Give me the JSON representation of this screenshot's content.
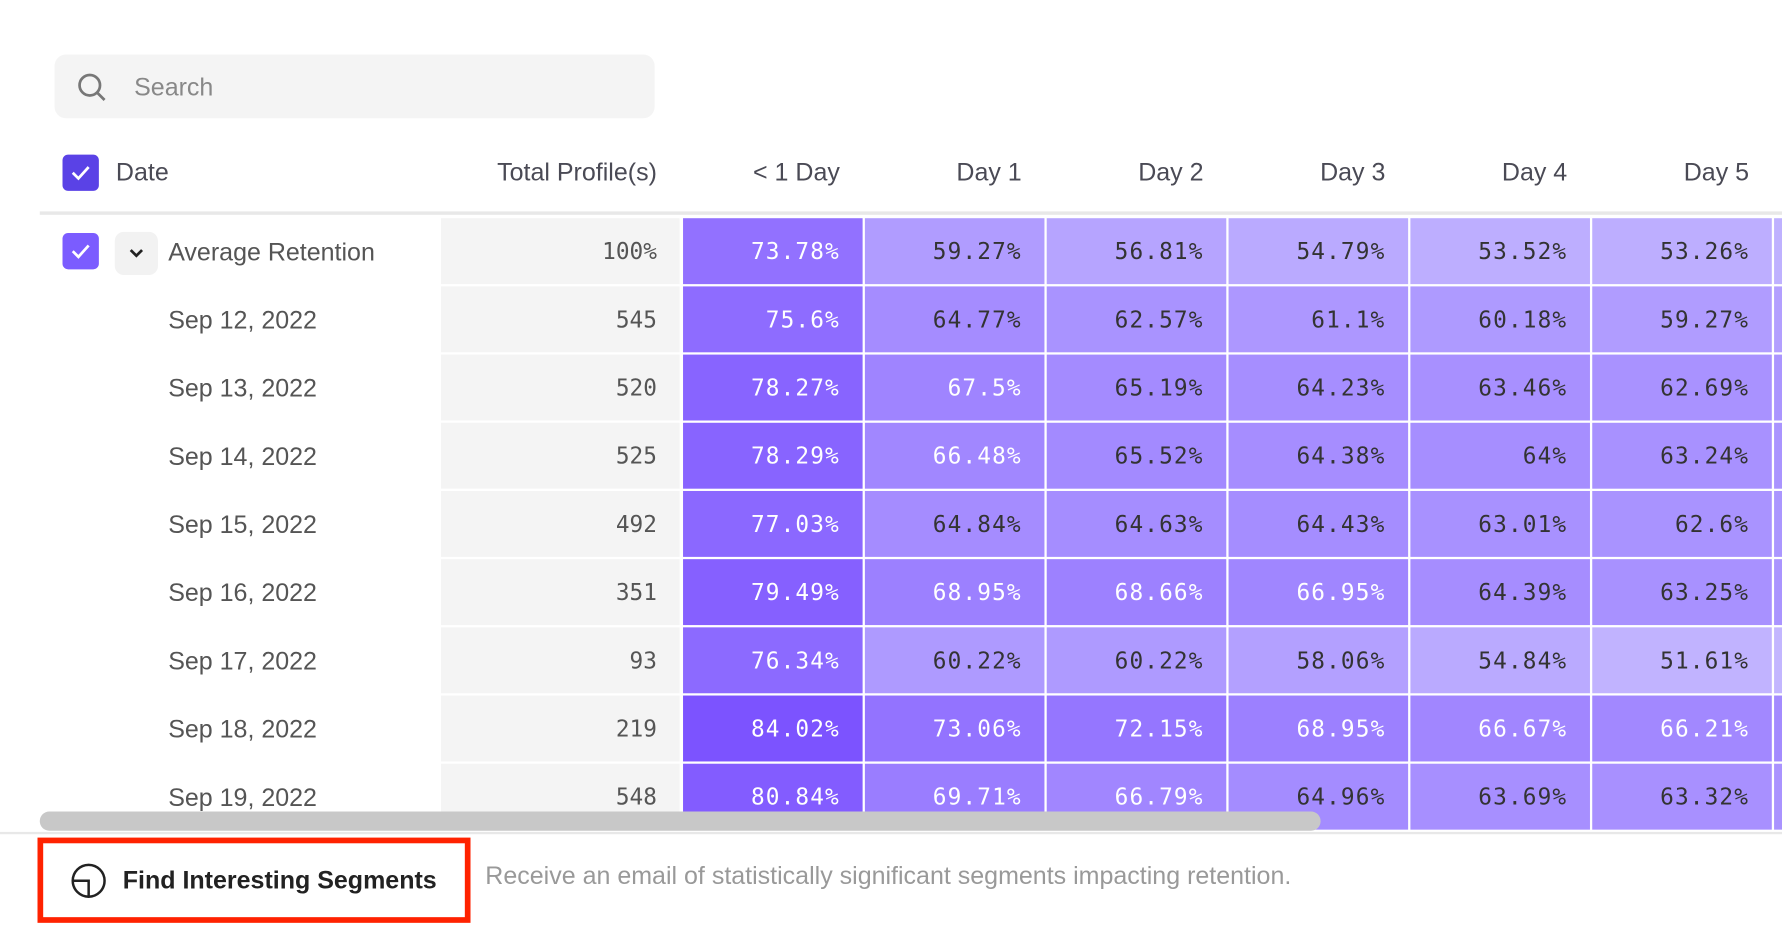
{
  "search": {
    "placeholder": "Search",
    "icon": "search-icon"
  },
  "table": {
    "columns": [
      "Date",
      "Total Profile(s)",
      "< 1 Day",
      "Day 1",
      "Day 2",
      "Day 3",
      "Day 4",
      "Day 5"
    ],
    "average": {
      "label": "Average Retention",
      "total": "100%",
      "values": [
        "73.78%",
        "59.27%",
        "56.81%",
        "54.79%",
        "53.52%",
        "53.26%"
      ]
    },
    "rows": [
      {
        "date": "Sep 12, 2022",
        "total": "545",
        "values": [
          "75.6%",
          "64.77%",
          "62.57%",
          "61.1%",
          "60.18%",
          "59.27%"
        ]
      },
      {
        "date": "Sep 13, 2022",
        "total": "520",
        "values": [
          "78.27%",
          "67.5%",
          "65.19%",
          "64.23%",
          "63.46%",
          "62.69%"
        ]
      },
      {
        "date": "Sep 14, 2022",
        "total": "525",
        "values": [
          "78.29%",
          "66.48%",
          "65.52%",
          "64.38%",
          "64%",
          "63.24%"
        ]
      },
      {
        "date": "Sep 15, 2022",
        "total": "492",
        "values": [
          "77.03%",
          "64.84%",
          "64.63%",
          "64.43%",
          "63.01%",
          "62.6%"
        ]
      },
      {
        "date": "Sep 16, 2022",
        "total": "351",
        "values": [
          "79.49%",
          "68.95%",
          "68.66%",
          "66.95%",
          "64.39%",
          "63.25%"
        ]
      },
      {
        "date": "Sep 17, 2022",
        "total": "93",
        "values": [
          "76.34%",
          "60.22%",
          "60.22%",
          "58.06%",
          "54.84%",
          "51.61%"
        ]
      },
      {
        "date": "Sep 18, 2022",
        "total": "219",
        "values": [
          "84.02%",
          "73.06%",
          "72.15%",
          "68.95%",
          "66.67%",
          "66.21%"
        ]
      },
      {
        "date": "Sep 19, 2022",
        "total": "548",
        "values": [
          "80.84%",
          "69.71%",
          "66.79%",
          "64.96%",
          "63.69%",
          "63.32%"
        ]
      }
    ]
  },
  "footer": {
    "button_label": "Find Interesting Segments",
    "button_icon": "segments-icon",
    "description": "Receive an email of statistically significant segments impacting retention."
  },
  "colors": {
    "accent": "#5a42e6",
    "heat_high": "#7a50ff",
    "heat_low": "#c4b8ff",
    "highlight_border": "#ff2200"
  }
}
